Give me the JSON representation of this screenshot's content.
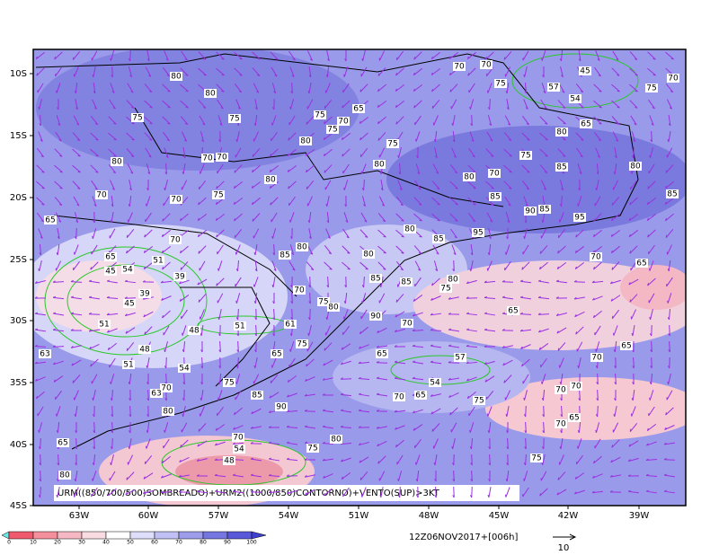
{
  "map": {
    "lat_labels": [
      "10S",
      "15S",
      "20S",
      "25S",
      "30S",
      "35S",
      "40S",
      "45S"
    ],
    "lon_labels": [
      "63W",
      "60W",
      "57W",
      "54W",
      "51W",
      "48W",
      "45W",
      "42W",
      "39W"
    ],
    "caption": "URM((850/700/500)SOMBREADO)+URM2((1000/850)CONTORNO)+VENTO(SUP)>3KT",
    "colorbar_labels": [
      "0",
      "10",
      "20",
      "30",
      "40",
      "50",
      "60",
      "70",
      "80",
      "90",
      "100"
    ],
    "timestamp": "12Z06NOV2017+[006h]",
    "vector_scale": "10",
    "contour_labels": [
      "80",
      "80",
      "75",
      "75",
      "75",
      "70",
      "65",
      "75",
      "80",
      "75",
      "80",
      "80",
      "70",
      "70",
      "80",
      "75",
      "70",
      "70",
      "85",
      "70",
      "80",
      "90",
      "85",
      "95",
      "95",
      "85",
      "80",
      "70",
      "80",
      "80",
      "85",
      "65",
      "85",
      "85",
      "75",
      "80",
      "70",
      "75",
      "80",
      "65",
      "90",
      "70",
      "75",
      "65",
      "65",
      "57",
      "54",
      "70",
      "65",
      "75",
      "70",
      "63",
      "75",
      "85",
      "90",
      "80",
      "70",
      "70",
      "65",
      "70",
      "65",
      "70",
      "65",
      "70",
      "75",
      "80",
      "75",
      "70",
      "65",
      "80",
      "48",
      "54",
      "57",
      "54",
      "45",
      "70",
      "70",
      "75",
      "75",
      "70",
      "65",
      "80",
      "75",
      "85",
      "80",
      "85",
      "65",
      "51",
      "54",
      "45",
      "39",
      "39",
      "45",
      "51",
      "48",
      "51",
      "48",
      "51",
      "54",
      "63",
      "61"
    ]
  }
}
